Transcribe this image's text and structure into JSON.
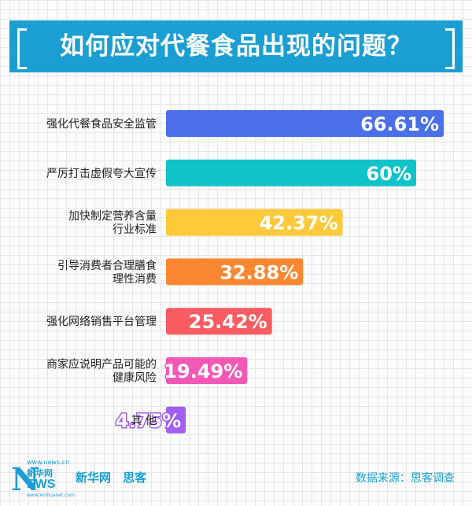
{
  "title": "如何应对代餐食品出现的问题？",
  "chart_data": {
    "type": "bar",
    "orientation": "horizontal",
    "categories": [
      [
        "强化代餐食品安全监管"
      ],
      [
        "严厉打击虚假夸大宣传"
      ],
      [
        "加快制定营养含量",
        "行业标准"
      ],
      [
        "引导消费者合理膳食",
        "理性消费"
      ],
      [
        "强化网络销售平台管理"
      ],
      [
        "商家应说明产品可能的",
        "健康风险"
      ],
      [
        "其 他"
      ]
    ],
    "values": [
      66.61,
      60,
      42.37,
      32.88,
      25.42,
      19.49,
      4.75
    ],
    "value_labels": [
      "66.61%",
      "60%",
      "42.37%",
      "32.88%",
      "25.42%",
      "19.49%",
      "4.75%"
    ],
    "colors": [
      "#4a6fe6",
      "#10c3c9",
      "#ffc93c",
      "#fb8732",
      "#f85c60",
      "#f259b6",
      "#a05ff0"
    ],
    "grid": true
  },
  "footer": {
    "logo_url": "www.news.cn",
    "logo_letter": "N",
    "logo_cn": "新华网",
    "logo_letters": "EWS",
    "logo_sub": "www.xinhuanet.com",
    "brand": "新华网 思客",
    "source": "数据来源：思客调查"
  },
  "colors": {
    "accent": "#1b9fd2",
    "label_text": "#222222"
  }
}
